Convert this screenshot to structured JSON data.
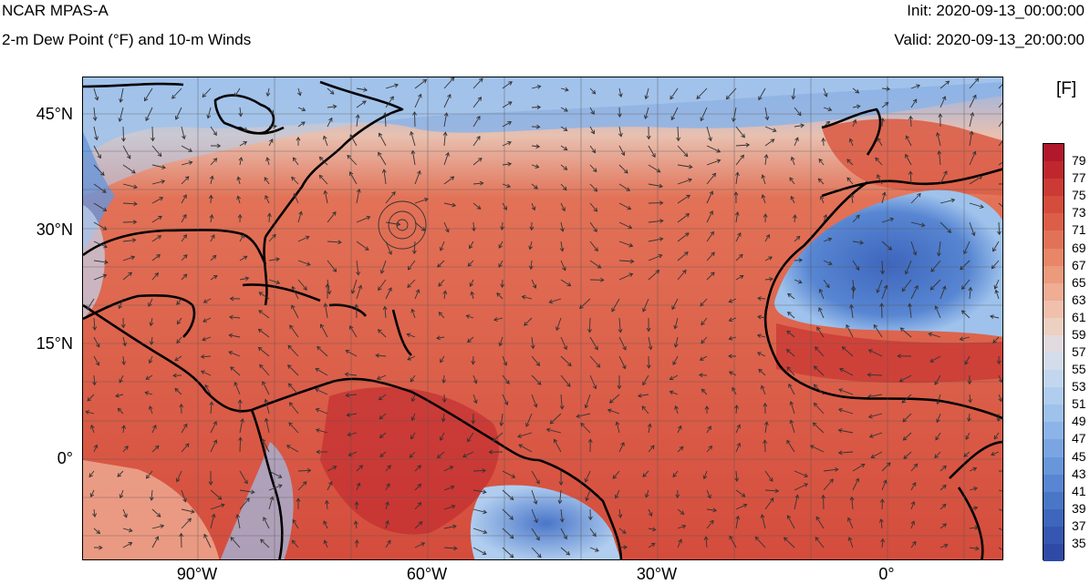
{
  "header": {
    "model": "NCAR MPAS-A",
    "field": "2-m Dew Point (°F) and 10-m Winds",
    "init": "Init: 2020-09-13_00:00:00",
    "valid": "Valid: 2020-09-13_20:00:00"
  },
  "colorbar": {
    "unit": "[F]",
    "labels": [
      "79",
      "77",
      "75",
      "73",
      "71",
      "69",
      "67",
      "65",
      "63",
      "61",
      "59",
      "57",
      "55",
      "53",
      "51",
      "49",
      "47",
      "45",
      "43",
      "41",
      "39",
      "37",
      "35"
    ],
    "colors": [
      "#b2182b",
      "#c0272d",
      "#cb3a34",
      "#d44c3c",
      "#dc5e48",
      "#e27257",
      "#e88667",
      "#ec9a7c",
      "#efad93",
      "#f0c0ac",
      "#ecd0c2",
      "#e1dbe0",
      "#d3dcea",
      "#c2d6ef",
      "#b0cdef",
      "#9ec2ec",
      "#8cb4e8",
      "#7aa5e2",
      "#6896db",
      "#5886d2",
      "#4a76c8",
      "#3e66bd",
      "#3657b1",
      "#2f4aa6"
    ]
  },
  "axes": {
    "lat_labels": [
      "45°N",
      "30°N",
      "15°N",
      "0°"
    ],
    "lon_labels": [
      "90°W",
      "60°W",
      "30°W",
      "0°"
    ]
  },
  "colors": {
    "warm": "#d8503f",
    "cool": "#4f79d4",
    "neutral": "#e8c9bd",
    "coast": "#000000"
  }
}
